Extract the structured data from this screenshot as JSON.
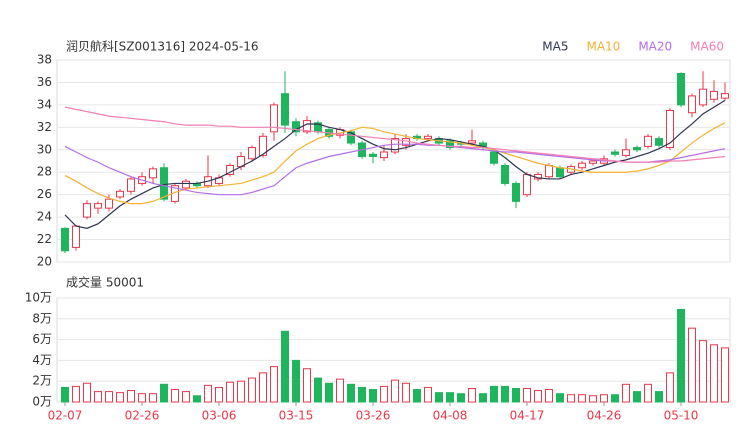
{
  "chart_data": [
    {
      "type": "candlestick",
      "title": "润贝航科[SZ001316] 2024-05-16",
      "categories": [
        "02-07",
        null,
        null,
        null,
        null,
        null,
        null,
        "02-26",
        null,
        null,
        null,
        null,
        null,
        null,
        "03-06",
        null,
        null,
        null,
        null,
        null,
        null,
        "03-15",
        null,
        null,
        null,
        null,
        null,
        null,
        "03-26",
        null,
        null,
        null,
        null,
        null,
        null,
        "04-08",
        null,
        null,
        null,
        null,
        null,
        null,
        "04-17",
        null,
        null,
        null,
        null,
        null,
        null,
        "04-26",
        null,
        null,
        null,
        null,
        null,
        null,
        "05-10",
        null,
        null,
        null,
        null
      ],
      "open": [
        23.0,
        21.3,
        24.0,
        24.8,
        24.8,
        25.8,
        26.3,
        27.0,
        27.5,
        28.4,
        25.4,
        26.6,
        27.0,
        26.8,
        27.0,
        27.8,
        28.5,
        29.2,
        29.5,
        31.6,
        35.0,
        32.5,
        31.6,
        32.4,
        31.8,
        31.3,
        31.6,
        30.6,
        29.6,
        29.3,
        29.8,
        30.4,
        31.2,
        31.0,
        31.0,
        30.8,
        30.6,
        30.6,
        30.6,
        29.8,
        28.6,
        27.0,
        26.0,
        27.4,
        27.6,
        28.4,
        28.0,
        28.4,
        28.8,
        28.8,
        29.8,
        29.5,
        30.2,
        30.3,
        31.0,
        30.2,
        36.8,
        33.3,
        34.0,
        34.5,
        34.6
      ],
      "high": [
        23.1,
        23.3,
        25.5,
        25.4,
        26.0,
        26.5,
        27.6,
        28.0,
        28.5,
        28.8,
        27.0,
        27.4,
        27.2,
        29.5,
        27.8,
        28.8,
        29.8,
        30.4,
        31.5,
        34.2,
        37.0,
        32.8,
        33.0,
        32.6,
        32.0,
        32.0,
        31.8,
        30.8,
        29.8,
        30.4,
        31.4,
        31.4,
        31.4,
        31.4,
        31.2,
        31.0,
        30.8,
        31.8,
        30.8,
        30.0,
        28.8,
        27.2,
        28.0,
        28.0,
        28.8,
        28.6,
        28.7,
        29.0,
        29.2,
        29.5,
        30.0,
        31.0,
        30.4,
        31.4,
        31.2,
        33.7,
        36.9,
        35.0,
        37.0,
        36.2,
        36.0
      ],
      "low": [
        20.8,
        21.0,
        23.8,
        24.3,
        24.5,
        25.6,
        26.0,
        26.8,
        27.0,
        25.4,
        25.2,
        26.4,
        26.6,
        26.6,
        26.8,
        27.6,
        28.2,
        28.9,
        29.3,
        30.8,
        31.5,
        31.2,
        31.4,
        31.4,
        31.0,
        31.0,
        30.4,
        29.2,
        28.8,
        29.0,
        29.6,
        30.0,
        30.8,
        30.8,
        30.4,
        30.0,
        30.3,
        30.4,
        30.0,
        28.6,
        26.8,
        24.8,
        25.8,
        27.2,
        27.4,
        27.4,
        27.8,
        28.2,
        28.6,
        28.6,
        29.4,
        29.3,
        29.8,
        30.1,
        30.2,
        30.0,
        33.8,
        32.9,
        33.8,
        34.2,
        34.4
      ],
      "close": [
        21.0,
        23.2,
        25.2,
        25.2,
        25.6,
        26.3,
        27.4,
        27.6,
        28.3,
        25.6,
        26.8,
        27.2,
        26.8,
        27.6,
        27.5,
        28.6,
        29.4,
        30.2,
        31.2,
        34.0,
        32.2,
        31.6,
        32.6,
        31.6,
        31.2,
        31.8,
        30.6,
        29.4,
        29.4,
        29.8,
        31.0,
        31.0,
        31.0,
        31.2,
        30.6,
        30.2,
        30.5,
        30.8,
        30.2,
        28.8,
        27.0,
        25.4,
        27.8,
        27.8,
        28.6,
        27.6,
        28.5,
        28.8,
        29.0,
        29.2,
        29.6,
        30.0,
        30.0,
        31.2,
        30.4,
        33.5,
        34.0,
        34.8,
        35.4,
        35.2,
        35.0
      ],
      "up_color": "#e8384a",
      "down_color": "#1fb55c",
      "series": [
        {
          "name": "MA5",
          "color": "#2f3553",
          "values": [
            24.2,
            23.2,
            23.0,
            23.4,
            24.2,
            25.0,
            25.6,
            26.1,
            26.6,
            26.9,
            27.0,
            27.0,
            27.0,
            27.2,
            27.5,
            28.0,
            28.5,
            29.0,
            29.6,
            30.3,
            31.0,
            31.8,
            32.3,
            32.3,
            32.0,
            31.8,
            31.5,
            31.0,
            30.5,
            30.1,
            30.0,
            30.2,
            30.5,
            30.8,
            31.0,
            30.9,
            30.7,
            30.5,
            30.3,
            30.0,
            29.3,
            28.5,
            27.8,
            27.5,
            27.4,
            27.4,
            27.8,
            28.0,
            28.3,
            28.6,
            28.9,
            29.1,
            29.4,
            29.7,
            30.1,
            30.6,
            31.5,
            32.3,
            33.2,
            33.8,
            34.4
          ]
        },
        {
          "name": "MA10",
          "color": "#f2b233",
          "values": [
            27.7,
            27.2,
            26.6,
            26.1,
            25.7,
            25.4,
            25.2,
            25.2,
            25.4,
            25.8,
            26.2,
            26.5,
            26.6,
            26.7,
            26.8,
            26.9,
            27.0,
            27.3,
            27.6,
            28.0,
            29.0,
            29.9,
            30.5,
            31.0,
            31.3,
            31.5,
            31.7,
            32.0,
            31.9,
            31.6,
            31.4,
            31.2,
            31.0,
            30.9,
            30.8,
            30.7,
            30.6,
            30.4,
            30.2,
            30.0,
            29.7,
            29.4,
            29.1,
            28.8,
            28.6,
            28.4,
            28.3,
            28.1,
            28.0,
            28.0,
            28.0,
            28.0,
            28.1,
            28.3,
            28.6,
            29.0,
            29.8,
            30.6,
            31.3,
            31.9,
            32.4
          ]
        },
        {
          "name": "MA20",
          "color": "#b46ee6",
          "values": [
            30.3,
            29.8,
            29.3,
            28.9,
            28.4,
            28.0,
            27.6,
            27.3,
            27.0,
            26.8,
            26.6,
            26.4,
            26.2,
            26.1,
            26.0,
            26.0,
            26.0,
            26.2,
            26.5,
            26.8,
            27.6,
            28.4,
            28.8,
            29.1,
            29.4,
            29.6,
            29.8,
            30.0,
            30.2,
            30.4,
            30.5,
            30.5,
            30.5,
            30.4,
            30.4,
            30.3,
            30.2,
            30.1,
            30.0,
            29.9,
            29.8,
            29.8,
            29.7,
            29.6,
            29.5,
            29.4,
            29.3,
            29.2,
            29.1,
            29.0,
            29.0,
            28.9,
            28.9,
            28.9,
            29.0,
            29.1,
            29.3,
            29.5,
            29.7,
            29.9,
            30.1
          ]
        },
        {
          "name": "MA60",
          "color": "#f47fb4",
          "values": [
            33.8,
            33.6,
            33.4,
            33.2,
            33.0,
            32.9,
            32.8,
            32.7,
            32.6,
            32.5,
            32.3,
            32.2,
            32.2,
            32.2,
            32.1,
            32.1,
            32.0,
            32.0,
            32.0,
            32.0,
            31.9,
            31.8,
            31.7,
            31.6,
            31.5,
            31.4,
            31.3,
            31.2,
            31.1,
            31.0,
            30.9,
            30.8,
            30.6,
            30.5,
            30.4,
            30.3,
            30.3,
            30.2,
            30.2,
            30.1,
            30.0,
            29.9,
            29.8,
            29.7,
            29.6,
            29.5,
            29.4,
            29.3,
            29.2,
            29.1,
            29.0,
            28.9,
            28.9,
            28.9,
            28.9,
            29.0,
            29.0,
            29.1,
            29.2,
            29.3,
            29.4
          ]
        }
      ],
      "ylim": [
        20,
        38
      ],
      "yticks": [
        20,
        22,
        24,
        26,
        28,
        30,
        32,
        34,
        36,
        38
      ],
      "grid": true
    },
    {
      "type": "bar",
      "title": "成交量 50001",
      "values": [
        1.4,
        1.5,
        1.8,
        1.0,
        1.0,
        0.9,
        1.1,
        0.8,
        0.8,
        1.7,
        1.2,
        1.0,
        0.6,
        1.6,
        1.4,
        1.9,
        2.0,
        2.3,
        2.8,
        3.4,
        6.8,
        4.0,
        3.2,
        2.3,
        1.8,
        2.2,
        1.7,
        1.4,
        1.2,
        1.5,
        2.1,
        1.8,
        1.2,
        1.4,
        0.9,
        0.9,
        0.8,
        1.3,
        0.8,
        1.5,
        1.5,
        1.3,
        1.3,
        1.1,
        1.2,
        0.8,
        0.7,
        0.7,
        0.6,
        0.7,
        0.7,
        1.7,
        1.0,
        1.7,
        1.0,
        2.8,
        8.9,
        7.1,
        5.9,
        5.5,
        5.2
      ],
      "ylim": [
        0,
        10
      ],
      "yticks": [
        {
          "value": 0,
          "label": "0万"
        },
        {
          "value": 2,
          "label": "2万"
        },
        {
          "value": 4,
          "label": "4万"
        },
        {
          "value": 6,
          "label": "6万"
        },
        {
          "value": 8,
          "label": "8万"
        },
        {
          "value": 10,
          "label": "10万"
        }
      ],
      "grid": true
    }
  ]
}
